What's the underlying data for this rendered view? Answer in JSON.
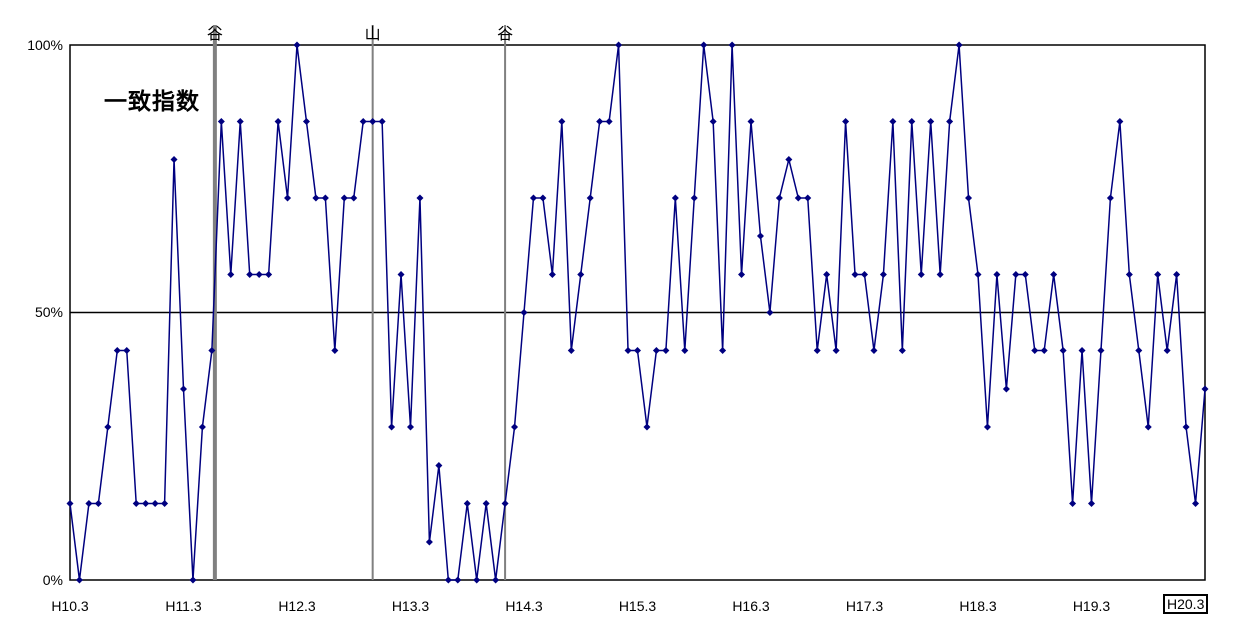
{
  "chart_data": {
    "type": "line",
    "title": "一致指数",
    "y_ticks": [
      "100%",
      "50%",
      "0%"
    ],
    "x_tick_labels": [
      "H10.3",
      "H11.3",
      "H12.3",
      "H13.3",
      "H14.3",
      "H15.3",
      "H16.3",
      "H17.3",
      "H18.3",
      "H19.3",
      "H20.3"
    ],
    "ylim": [
      0,
      100
    ],
    "reference_line": 50,
    "cycle_markers": [
      {
        "label": "谷",
        "month": "H11.6"
      },
      {
        "label": "山",
        "month": "H12.11"
      },
      {
        "label": "谷",
        "month": "H14.1"
      }
    ],
    "series": [
      {
        "color": "#000080",
        "values": [
          14.3,
          0,
          14.3,
          14.3,
          28.6,
          42.9,
          42.9,
          14.3,
          14.3,
          14.3,
          14.3,
          78.6,
          35.7,
          0,
          28.6,
          42.9,
          85.7,
          57.1,
          85.7,
          57.1,
          57.1,
          57.1,
          85.7,
          71.4,
          100,
          85.7,
          71.4,
          71.4,
          42.9,
          71.4,
          71.4,
          85.7,
          85.7,
          85.7,
          28.6,
          57.1,
          28.6,
          71.4,
          7.1,
          21.4,
          0,
          0,
          14.3,
          0,
          14.3,
          0,
          14.3,
          28.6,
          50,
          71.4,
          71.4,
          57.1,
          85.7,
          42.9,
          57.1,
          71.4,
          85.7,
          85.7,
          100,
          42.9,
          42.9,
          28.6,
          42.9,
          42.9,
          71.4,
          42.9,
          71.4,
          100,
          85.7,
          42.9,
          100,
          57.1,
          85.7,
          64.3,
          50,
          71.4,
          78.6,
          71.4,
          71.4,
          42.9,
          57.1,
          42.9,
          85.7,
          57.1,
          57.1,
          42.9,
          57.1,
          85.7,
          42.9,
          85.7,
          57.1,
          85.7,
          57.1,
          85.7,
          100,
          71.4,
          57.1,
          28.6,
          57.1,
          35.7,
          57.1,
          57.1,
          42.9,
          42.9,
          57.1,
          42.9,
          14.3,
          42.9,
          14.3,
          42.9,
          71.4,
          85.7,
          57.1,
          42.9,
          28.6,
          57.1,
          42.9,
          57.1,
          28.6,
          14.3,
          35.7
        ]
      }
    ]
  }
}
